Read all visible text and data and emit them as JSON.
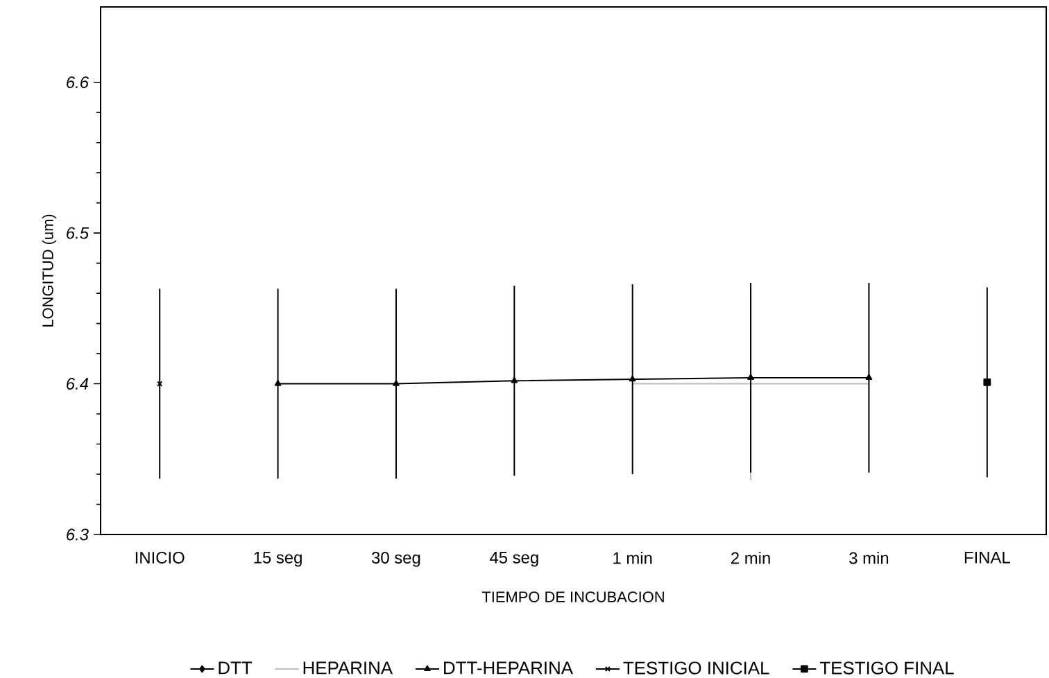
{
  "chart_data": {
    "type": "line",
    "xlabel": "TIEMPO DE INCUBACION",
    "ylabel": "LONGITUD (um)",
    "categories": [
      "INICIO",
      "15 seg",
      "30 seg",
      "45 seg",
      "1 min",
      "2 min",
      "3 min",
      "FINAL"
    ],
    "ylim": [
      6.3,
      6.65
    ],
    "yticks": [
      6.3,
      6.4,
      6.5,
      6.6
    ],
    "legend": "bottom",
    "line_style": "solid",
    "series": [
      {
        "name": "DTT",
        "color": "#000000",
        "marker": "diamond",
        "values": [
          null,
          null,
          null,
          null,
          null,
          null,
          null,
          null
        ],
        "errors": [
          null,
          null,
          null,
          null,
          null,
          null,
          null,
          null
        ]
      },
      {
        "name": "HEPARINA",
        "color": "#bdbdbd",
        "marker": "none",
        "values": [
          null,
          null,
          null,
          null,
          6.4,
          6.4,
          6.4,
          null
        ],
        "errors": [
          null,
          null,
          null,
          null,
          null,
          0.064,
          null,
          null
        ]
      },
      {
        "name": "DTT-HEPARINA",
        "color": "#000000",
        "marker": "triangle",
        "values": [
          null,
          6.4,
          6.4,
          6.402,
          6.403,
          6.404,
          6.404,
          null
        ],
        "errors": [
          null,
          0.063,
          0.063,
          0.063,
          0.063,
          0.063,
          0.063,
          null
        ]
      },
      {
        "name": "TESTIGO INICIAL",
        "color": "#000000",
        "marker": "cross",
        "values": [
          6.4,
          null,
          null,
          null,
          null,
          null,
          null,
          null
        ],
        "errors": [
          0.063,
          null,
          null,
          null,
          null,
          null,
          null,
          null
        ]
      },
      {
        "name": "TESTIGO FINAL",
        "color": "#000000",
        "marker": "square",
        "values": [
          null,
          null,
          null,
          null,
          null,
          null,
          null,
          6.401
        ],
        "errors": [
          null,
          null,
          null,
          null,
          null,
          null,
          null,
          0.063
        ]
      }
    ]
  }
}
